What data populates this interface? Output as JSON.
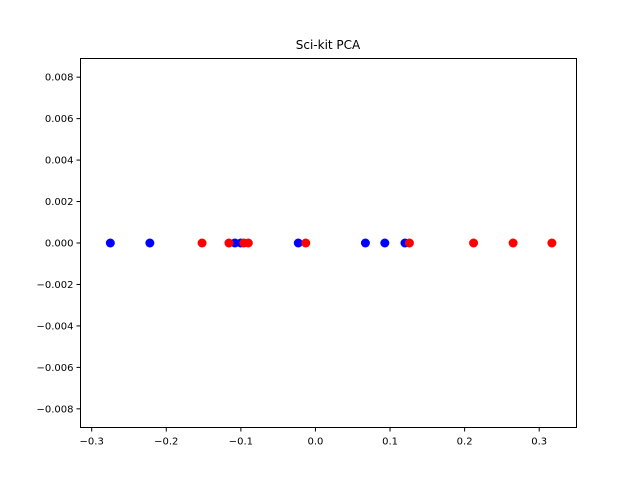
{
  "chart_data": {
    "type": "scatter",
    "title": "Sci-kit PCA",
    "xlabel": "",
    "ylabel": "",
    "xlim": [
      -0.315,
      0.35
    ],
    "ylim": [
      -0.0089,
      0.0089
    ],
    "xticks": [
      -0.3,
      -0.2,
      -0.1,
      0.0,
      0.1,
      0.2,
      0.3
    ],
    "xtick_labels": [
      "−0.3",
      "−0.2",
      "−0.1",
      "0.0",
      "0.1",
      "0.2",
      "0.3"
    ],
    "yticks": [
      0.008,
      0.006,
      0.004,
      0.002,
      0.0,
      -0.002,
      -0.004,
      -0.006,
      -0.008
    ],
    "ytick_labels": [
      "0.008",
      "0.006",
      "0.004",
      "0.002",
      "0.000",
      "−0.002",
      "−0.004",
      "−0.006",
      "−0.008"
    ],
    "grid": false,
    "series": [
      {
        "color": "#0000ff",
        "points": [
          {
            "x": -0.275,
            "y": 0
          },
          {
            "x": -0.222,
            "y": 0
          },
          {
            "x": -0.108,
            "y": 0
          },
          {
            "x": -0.1,
            "y": 0
          },
          {
            "x": -0.023,
            "y": 0
          },
          {
            "x": 0.067,
            "y": 0
          },
          {
            "x": 0.093,
            "y": 0
          },
          {
            "x": 0.12,
            "y": 0
          }
        ]
      },
      {
        "color": "#ff0000",
        "points": [
          {
            "x": -0.152,
            "y": 0
          },
          {
            "x": -0.116,
            "y": 0
          },
          {
            "x": -0.096,
            "y": 0
          },
          {
            "x": -0.09,
            "y": 0
          },
          {
            "x": -0.013,
            "y": 0
          },
          {
            "x": 0.126,
            "y": 0
          },
          {
            "x": 0.212,
            "y": 0
          },
          {
            "x": 0.265,
            "y": 0
          },
          {
            "x": 0.317,
            "y": 0
          }
        ]
      }
    ]
  }
}
